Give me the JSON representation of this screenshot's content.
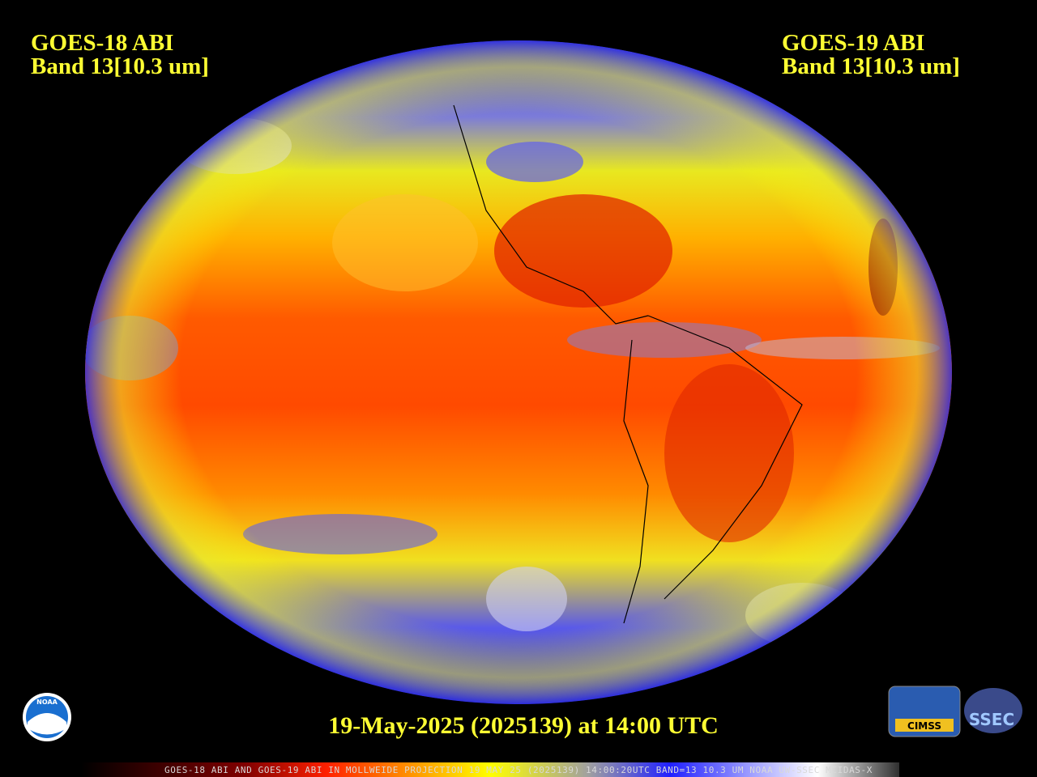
{
  "header": {
    "left": {
      "satellite": "GOES-18 ABI",
      "band": "Band 13[10.3 um]"
    },
    "right": {
      "satellite": "GOES-19 ABI",
      "band": "Band 13[10.3 um]"
    }
  },
  "timestamp": "19-May-2025 (2025139) at 14:00 UTC",
  "footer": "GOES-18 ABI AND GOES-19 ABI IN MOLLWEIDE PROJECTION 19 MAY 25 (2025139) 14:00:20UTC BAND=13 10.3 UM NOAA UW-SSEC MCIDAS-X",
  "logos": {
    "noaa": "NOAA",
    "cimss": "CIMSS",
    "ssec": "SSEC"
  }
}
